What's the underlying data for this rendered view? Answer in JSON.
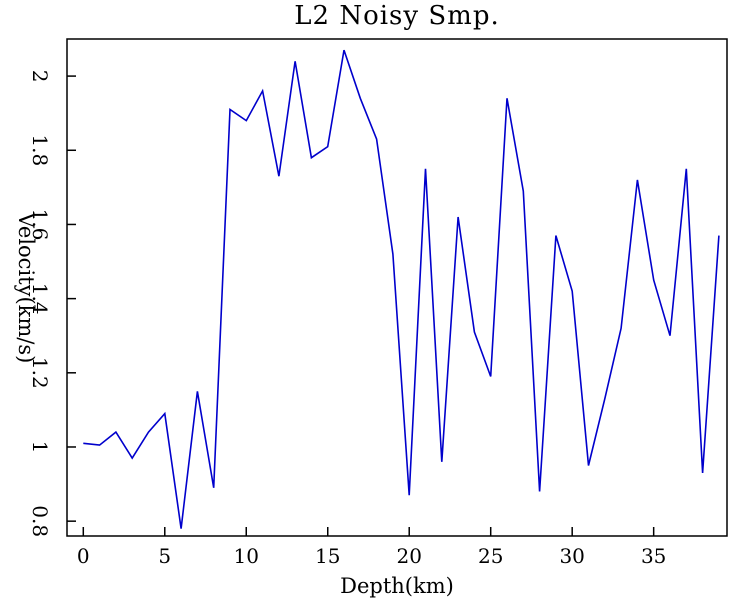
{
  "chart_data": {
    "type": "line",
    "title": "L2 Noisy Smp.",
    "xlabel": "Depth(km)",
    "ylabel": "Velocity(km/s)",
    "xlim": [
      -1,
      39.5
    ],
    "ylim": [
      0.76,
      2.1
    ],
    "x_ticks": [
      "0",
      "5",
      "10",
      "15",
      "20",
      "25",
      "30",
      "35"
    ],
    "y_ticks": [
      "0.8",
      "1",
      "1.2",
      "1.4",
      "1.6",
      "1.8",
      "2"
    ],
    "grid": false,
    "series": [
      {
        "color": "#0000cc",
        "x": [
          0,
          1,
          2,
          3,
          4,
          5,
          6,
          7,
          8,
          9,
          10,
          11,
          12,
          13,
          14,
          15,
          16,
          17,
          18,
          19,
          20,
          21,
          22,
          23,
          24,
          25,
          26,
          27,
          28,
          29,
          30,
          31,
          32,
          33,
          34,
          35,
          36,
          37,
          38,
          39
        ],
        "y": [
          1.01,
          1.005,
          1.04,
          0.97,
          1.04,
          1.09,
          0.78,
          1.15,
          0.89,
          1.91,
          1.88,
          1.96,
          1.73,
          2.04,
          1.78,
          1.81,
          2.07,
          1.94,
          1.83,
          1.52,
          0.87,
          1.75,
          0.96,
          1.62,
          1.31,
          1.19,
          1.94,
          1.69,
          0.88,
          1.57,
          1.42,
          0.95,
          1.13,
          1.32,
          1.72,
          1.45,
          1.3,
          1.75,
          0.93,
          1.57
        ]
      }
    ]
  }
}
